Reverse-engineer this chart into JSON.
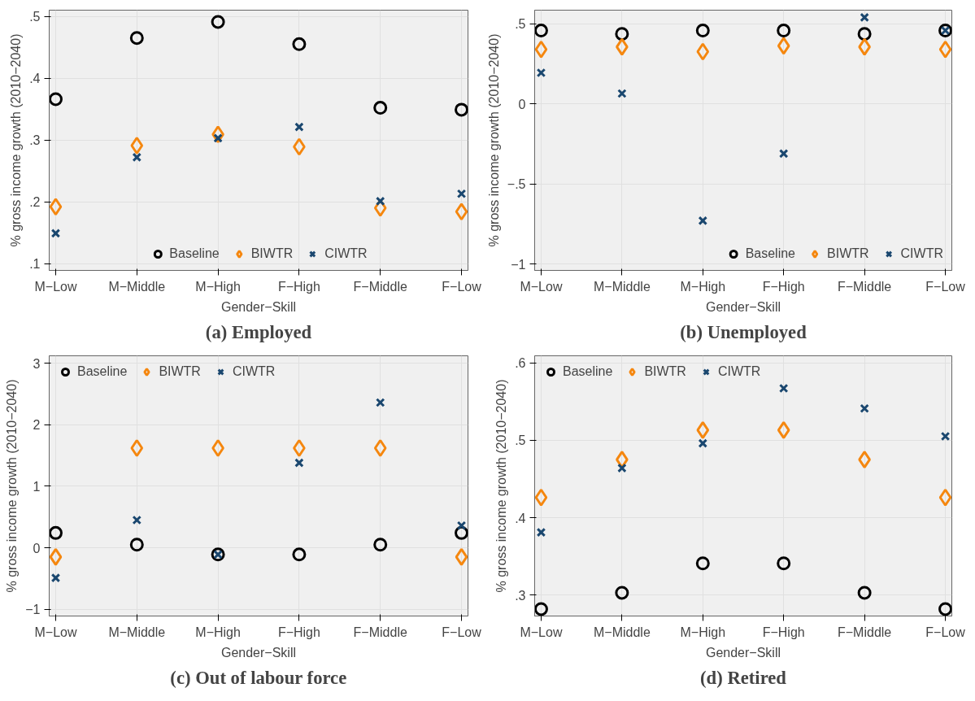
{
  "chart_data": [
    {
      "type": "scatter",
      "title": "(a) Employed",
      "xlabel": "Gender−Skill",
      "ylabel": "% gross income growth (2010−2040)",
      "categories": [
        "M−Low",
        "M−Middle",
        "M−High",
        "F−High",
        "F−Middle",
        "F−Low"
      ],
      "ylim": [
        0.089,
        0.51
      ],
      "yticks": [
        {
          "value": 0.1,
          "label": ".1"
        },
        {
          "value": 0.2,
          "label": ".2"
        },
        {
          "value": 0.3,
          "label": ".3"
        },
        {
          "value": 0.4,
          "label": ".4"
        },
        {
          "value": 0.5,
          "label": ".5"
        }
      ],
      "grid": true,
      "legend": "bottom",
      "series": [
        {
          "name": "Baseline",
          "color": "#000000",
          "marker": "circle",
          "values": [
            0.366,
            0.465,
            0.491,
            0.455,
            0.352,
            0.349
          ]
        },
        {
          "name": "BIWTR",
          "color": "#f5870f",
          "marker": "diamond",
          "values": [
            0.192,
            0.291,
            0.309,
            0.289,
            0.19,
            0.184
          ]
        },
        {
          "name": "CIWTR",
          "color": "#1a476f",
          "marker": "cross",
          "values": [
            0.149,
            0.272,
            0.303,
            0.321,
            0.201,
            0.213
          ]
        }
      ]
    },
    {
      "type": "scatter",
      "title": "(b) Unemployed",
      "xlabel": "Gender−Skill",
      "ylabel": "% gross income growth (2010−2040)",
      "categories": [
        "M−Low",
        "M−Middle",
        "M−High",
        "F−High",
        "F−Middle",
        "F−Low"
      ],
      "ylim": [
        -1.04,
        0.584
      ],
      "yticks": [
        {
          "value": -1,
          "label": "−1"
        },
        {
          "value": -0.5,
          "label": "−.5"
        },
        0,
        {
          "value": 0.5,
          "label": ".5"
        }
      ],
      "grid": true,
      "legend": "bottom right",
      "series": [
        {
          "name": "Baseline",
          "color": "#000000",
          "marker": "circle",
          "values": [
            0.457,
            0.436,
            0.457,
            0.457,
            0.436,
            0.457
          ]
        },
        {
          "name": "BIWTR",
          "color": "#f5870f",
          "marker": "diamond",
          "values": [
            0.339,
            0.355,
            0.325,
            0.361,
            0.355,
            0.339
          ]
        },
        {
          "name": "CIWTR",
          "color": "#1a476f",
          "marker": "cross",
          "values": [
            0.193,
            0.064,
            -0.73,
            -0.311,
            0.539,
            0.457
          ]
        }
      ]
    },
    {
      "type": "scatter",
      "title": "(c) Out of labour force",
      "xlabel": "Gender−Skill",
      "ylabel": "% gross income growth (2010−2040)",
      "categories": [
        "M−Low",
        "M−Middle",
        "M−High",
        "F−High",
        "F−Middle",
        "F−Low"
      ],
      "ylim": [
        -1.11,
        3.12
      ],
      "yticks": [
        {
          "value": -1,
          "label": "−1"
        },
        0,
        1,
        2,
        3
      ],
      "grid": true,
      "legend": "top left",
      "series": [
        {
          "name": "Baseline",
          "color": "#000000",
          "marker": "circle",
          "values": [
            0.24,
            0.05,
            -0.11,
            -0.11,
            0.05,
            0.24
          ]
        },
        {
          "name": "BIWTR",
          "color": "#f5870f",
          "marker": "diamond",
          "values": [
            -0.15,
            1.62,
            1.62,
            1.62,
            1.62,
            -0.15
          ]
        },
        {
          "name": "CIWTR",
          "color": "#1a476f",
          "marker": "cross",
          "values": [
            -0.49,
            0.45,
            -0.11,
            1.38,
            2.36,
            0.36
          ]
        }
      ]
    },
    {
      "type": "scatter",
      "title": "(d) Retired",
      "xlabel": "Gender−Skill",
      "ylabel": "% gross income growth (2010−2040)",
      "categories": [
        "M−Low",
        "M−Middle",
        "M−High",
        "F−High",
        "F−Middle",
        "F−Low"
      ],
      "ylim": [
        0.273,
        0.609
      ],
      "yticks": [
        {
          "value": 0.3,
          "label": ".3"
        },
        {
          "value": 0.4,
          "label": ".4"
        },
        {
          "value": 0.5,
          "label": ".5"
        },
        {
          "value": 0.6,
          "label": ".6"
        }
      ],
      "grid": true,
      "legend": "top left",
      "series": [
        {
          "name": "Baseline",
          "color": "#000000",
          "marker": "circle",
          "values": [
            0.282,
            0.303,
            0.341,
            0.341,
            0.303,
            0.282
          ]
        },
        {
          "name": "BIWTR",
          "color": "#f5870f",
          "marker": "diamond",
          "values": [
            0.426,
            0.475,
            0.513,
            0.513,
            0.475,
            0.426
          ]
        },
        {
          "name": "CIWTR",
          "color": "#1a476f",
          "marker": "cross",
          "values": [
            0.381,
            0.464,
            0.496,
            0.567,
            0.541,
            0.505
          ]
        }
      ]
    }
  ]
}
